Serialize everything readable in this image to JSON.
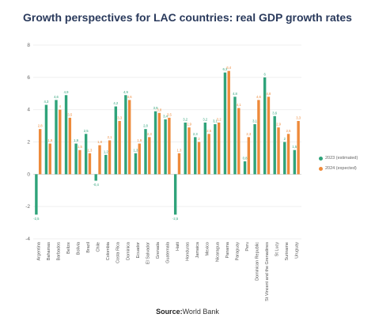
{
  "chart_data": {
    "type": "bar",
    "title": "Growth perspectives for LAC countries: real GDP growth rates",
    "ylim": [
      -4,
      8
    ],
    "yticks": [
      -4,
      -2,
      0,
      2,
      4,
      6,
      8
    ],
    "grid": true,
    "legend_position": "right",
    "categories": [
      "Argentina",
      "Bahamas",
      "Barbados",
      "Belize",
      "Bolivia",
      "Brazil",
      "Chile",
      "Colombia",
      "Costa Rica",
      "Dominica",
      "Ecuador",
      "El Salvador",
      "Grenada",
      "Guatemala",
      "Haiti",
      "Honduras",
      "Jamaica",
      "Mexico",
      "Nicaragua",
      "Panama",
      "Paraguay",
      "Peru",
      "Dominican Republic",
      "St Vincent and the Grenadines",
      "St Lucy",
      "Suriname",
      "Uruguay"
    ],
    "series": [
      {
        "name": "2023 (estimated)",
        "color": "#2fa37a",
        "values": [
          -2.5,
          4.3,
          4.6,
          4.9,
          1.9,
          2.5,
          -0.4,
          1.2,
          4.2,
          4.9,
          1.3,
          2.8,
          3.9,
          3.4,
          -2.5,
          3.2,
          2.3,
          3.2,
          3.1,
          6.3,
          4.8,
          0.8,
          3.1,
          6,
          3.6,
          2,
          1.5
        ]
      },
      {
        "name": "2024 (expected)",
        "color": "#ee8a3a",
        "values": [
          2.8,
          1.9,
          4,
          3.5,
          1.5,
          1.3,
          1.8,
          2.1,
          3.3,
          4.6,
          1.9,
          2.3,
          3.8,
          3.5,
          1.3,
          2.9,
          2,
          2.5,
          3.2,
          6.4,
          4.1,
          2.3,
          4.6,
          4.8,
          2.9,
          2.5,
          3.3
        ]
      }
    ],
    "value_labels": {
      "2023 (estimated)": [
        "-2,5",
        "4,3",
        "4,6",
        "4,9",
        "1,9",
        "2,5",
        "-0,4",
        "1,2",
        "4,2",
        "4,9",
        "1,3",
        "2,8",
        "3,9",
        "3,4",
        "-2,5",
        "3,2",
        "2,3",
        "3,2",
        "3,1",
        "6,3",
        "4,8",
        "0,8",
        "3,1",
        "6",
        "3,6",
        "2",
        "1,5"
      ],
      "2024 (expected)": [
        "2,8",
        "1,9",
        "4",
        "3,5",
        "1,5",
        "1,3",
        "1,8",
        "2,1",
        "3,3",
        "4,6",
        "1,9",
        "2,3",
        "3,8",
        "3,5",
        "1,3",
        "2,9",
        "2",
        "2,5",
        "3,2",
        "6,4",
        "4,1",
        "2,3",
        "4,6",
        "4,8",
        "2,9",
        "2,5",
        "3,3"
      ]
    }
  },
  "source": {
    "prefix": "Source:",
    "text": "World Bank"
  }
}
